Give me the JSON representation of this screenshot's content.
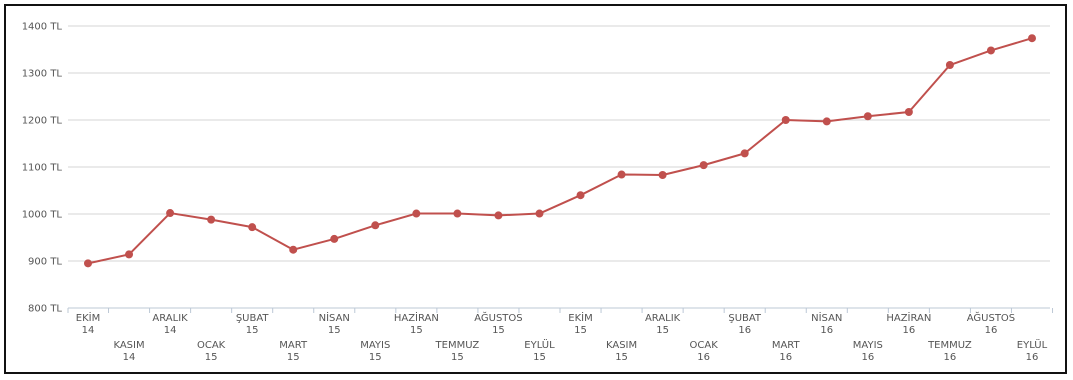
{
  "chart_data": {
    "type": "line",
    "title": "",
    "xlabel": "",
    "ylabel": "",
    "ylim": [
      800,
      1400
    ],
    "y_ticks": [
      {
        "value": 800,
        "label": "800 TL"
      },
      {
        "value": 900,
        "label": "900 TL"
      },
      {
        "value": 1000,
        "label": "1000 TL"
      },
      {
        "value": 1100,
        "label": "1100 TL"
      },
      {
        "value": 1200,
        "label": "1200 TL"
      },
      {
        "value": 1300,
        "label": "1300 TL"
      },
      {
        "value": 1400,
        "label": "1400 TL"
      }
    ],
    "grid": "horizontal",
    "legend": "none",
    "line_color": "#c0504d",
    "categories": [
      {
        "month": "EKİM",
        "year": "14"
      },
      {
        "month": "KASIM",
        "year": "14"
      },
      {
        "month": "ARALIK",
        "year": "14"
      },
      {
        "month": "OCAK",
        "year": "15"
      },
      {
        "month": "ŞUBAT",
        "year": "15"
      },
      {
        "month": "MART",
        "year": "15"
      },
      {
        "month": "NİSAN",
        "year": "15"
      },
      {
        "month": "MAYIS",
        "year": "15"
      },
      {
        "month": "HAZİRAN",
        "year": "15"
      },
      {
        "month": "TEMMUZ",
        "year": "15"
      },
      {
        "month": "AĞUSTOS",
        "year": "15"
      },
      {
        "month": "EYLÜL",
        "year": "15"
      },
      {
        "month": "EKİM",
        "year": "15"
      },
      {
        "month": "KASIM",
        "year": "15"
      },
      {
        "month": "ARALIK",
        "year": "15"
      },
      {
        "month": "OCAK",
        "year": "16"
      },
      {
        "month": "ŞUBAT",
        "year": "16"
      },
      {
        "month": "MART",
        "year": "16"
      },
      {
        "month": "NİSAN",
        "year": "16"
      },
      {
        "month": "MAYIS",
        "year": "16"
      },
      {
        "month": "HAZİRAN",
        "year": "16"
      },
      {
        "month": "TEMMUZ",
        "year": "16"
      },
      {
        "month": "AĞUSTOS",
        "year": "16"
      },
      {
        "month": "EYLÜL",
        "year": "16"
      }
    ],
    "series": [
      {
        "values": [
          895,
          914,
          1002,
          988,
          972,
          924,
          947,
          976,
          1001,
          1001,
          997,
          1001,
          1040,
          1084,
          1083,
          1104,
          1129,
          1200,
          1197,
          1208,
          1217,
          1317,
          1348,
          1374
        ]
      }
    ]
  }
}
